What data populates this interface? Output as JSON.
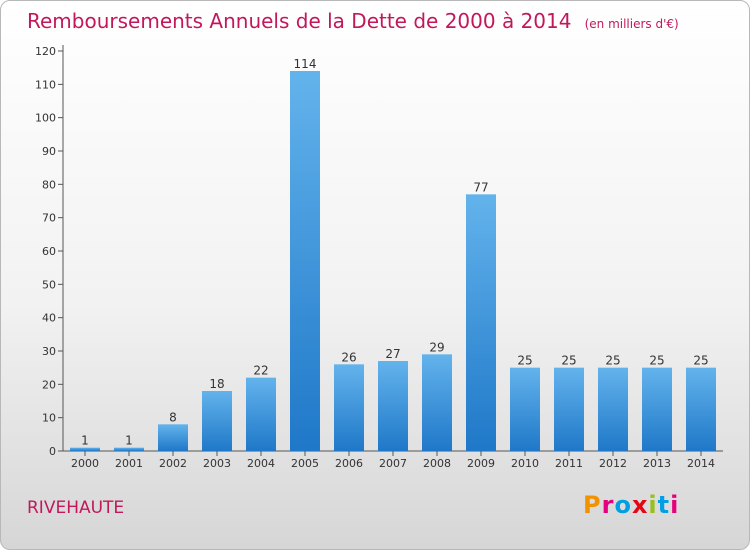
{
  "header": {
    "title": "Remboursements Annuels de la Dette de 2000 à 2014",
    "unit": "(en milliers d'€)"
  },
  "footer": {
    "commune": "RIVEHAUTE",
    "logo": "Proxiti"
  },
  "colors": {
    "title": "#c2185b",
    "bar_top": "#63b3ec",
    "bar_bottom": "#1f78c8",
    "logo": [
      "#f39200",
      "#e6007e",
      "#009fe3",
      "#e30613",
      "#95c11f",
      "#009fe3",
      "#e6007e"
    ]
  },
  "chart_data": {
    "type": "bar",
    "categories": [
      "2000",
      "2001",
      "2002",
      "2003",
      "2004",
      "2005",
      "2006",
      "2007",
      "2008",
      "2009",
      "2010",
      "2011",
      "2012",
      "2013",
      "2014"
    ],
    "values": [
      1,
      1,
      8,
      18,
      22,
      114,
      26,
      27,
      29,
      77,
      25,
      25,
      25,
      25,
      25
    ],
    "data_labels": [
      "1",
      "1",
      "8",
      "18",
      "22",
      "114",
      "26",
      "27",
      "29",
      "77",
      "25",
      "25",
      "25",
      "25",
      "25"
    ],
    "yticks": [
      0,
      10,
      20,
      30,
      40,
      50,
      60,
      70,
      80,
      90,
      100,
      110,
      120
    ],
    "ylim": [
      0,
      120
    ],
    "grid": false
  }
}
